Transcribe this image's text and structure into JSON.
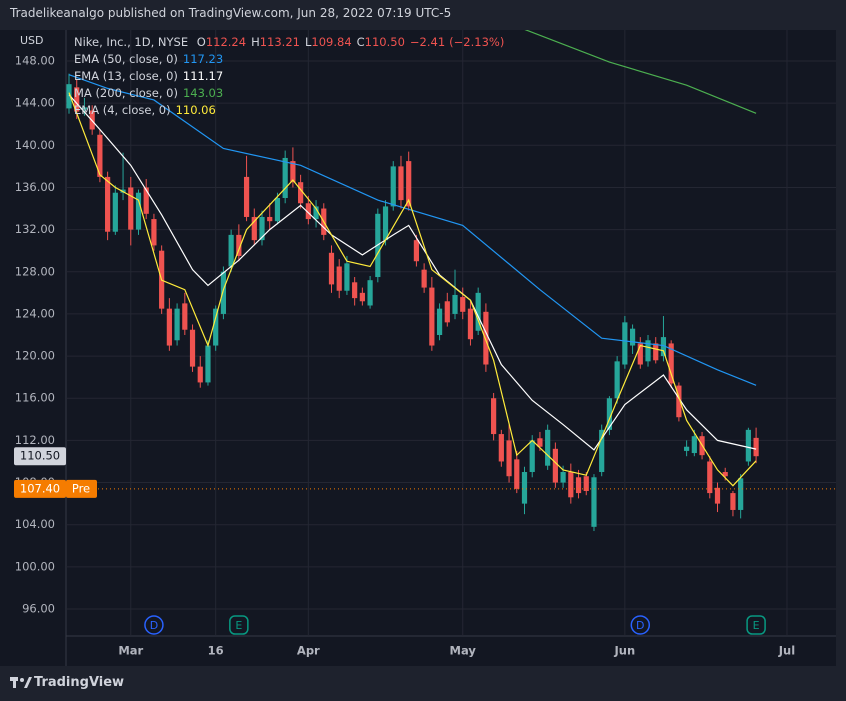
{
  "header": "Tradelikeanalgo published on TradingView.com, Jun 28, 2022 07:19 UTC-5",
  "footer": "TradingView",
  "chart_data": {
    "type": "candlestick",
    "currency": "USD",
    "symbol": "Nike, Inc., 1D, NYSE",
    "quote": [
      {
        "name": "O",
        "value": 112.24
      },
      {
        "name": "H",
        "value": 113.21
      },
      {
        "name": "L",
        "value": 109.84
      },
      {
        "name": "C",
        "value": 110.5,
        "text": "110.50"
      }
    ],
    "change": {
      "value": -2.41,
      "label": "−2.41"
    },
    "change_pct": {
      "value": -2.13,
      "label": "(−2.13%)"
    },
    "up_color": "#26a69a",
    "down_color": "#ef5350",
    "grid": true,
    "xlim": [
      -0.39,
      99.35
    ],
    "xticks": [
      {
        "value": 8,
        "label": "Mar"
      },
      {
        "value": 19,
        "label": "16"
      },
      {
        "value": 31,
        "label": "Apr"
      },
      {
        "value": 51,
        "label": "May"
      },
      {
        "value": 72,
        "label": "Jun"
      },
      {
        "value": 93,
        "label": "Jul"
      }
    ],
    "ylim": [
      93.44,
      150.94
    ],
    "yticks": [
      {
        "value": 148,
        "label": "148.00"
      },
      {
        "value": 144,
        "label": "144.00"
      },
      {
        "value": 140,
        "label": "140.00"
      },
      {
        "value": 136,
        "label": "136.00"
      },
      {
        "value": 132,
        "label": "132.00"
      },
      {
        "value": 128,
        "label": "128.00"
      },
      {
        "value": 124,
        "label": "124.00"
      },
      {
        "value": 120,
        "label": "120.00"
      },
      {
        "value": 116,
        "label": "116.00"
      },
      {
        "value": 112,
        "label": "112.00"
      },
      {
        "value": 108,
        "label": "108.00"
      },
      {
        "value": 104,
        "label": "104.00"
      },
      {
        "value": 100,
        "label": "100.00"
      },
      {
        "value": 96,
        "label": "96.00"
      }
    ],
    "open": [
      143.5,
      145.5,
      143.4,
      143.3,
      141.0,
      137.0,
      131.8,
      135.5,
      136.0,
      132.0,
      136.0,
      133.0,
      130.0,
      124.5,
      121.5,
      125.0,
      122.5,
      119.0,
      117.5,
      121.0,
      124.0,
      128.5,
      131.5,
      137.0,
      133.2,
      131.0,
      133.2,
      132.8,
      135.0,
      138.5,
      136.5,
      134.5,
      133.0,
      134.0,
      129.8,
      128.5,
      126.2,
      127.0,
      126.0,
      124.8,
      127.5,
      131.0,
      134.2,
      138.0,
      138.5,
      131.0,
      128.2,
      126.5,
      122.0,
      125.2,
      124.0,
      125.6,
      124.5,
      122.4,
      124.2,
      116.0,
      112.6,
      112.0,
      110.2,
      106.0,
      109.0,
      112.2,
      109.6,
      111.2,
      108.0,
      109.0,
      108.5,
      108.6,
      103.8,
      109.0,
      113.0,
      116.0,
      119.2,
      121.0,
      121.2,
      119.5,
      121.2,
      120.0,
      121.2,
      117.2,
      111.0,
      110.8,
      112.4,
      110.0,
      107.5,
      109.0,
      107.0,
      105.4,
      110.0,
      112.24
    ],
    "high": [
      146.8,
      146.2,
      144.5,
      143.8,
      141.5,
      137.5,
      136.2,
      139.3,
      137.0,
      135.8,
      136.8,
      133.5,
      130.5,
      125.5,
      125.0,
      126.0,
      123.0,
      120.0,
      121.5,
      124.8,
      128.5,
      132.0,
      132.5,
      139.0,
      134.0,
      133.8,
      134.5,
      135.5,
      139.5,
      139.8,
      137.2,
      135.2,
      134.8,
      134.5,
      130.5,
      129.2,
      129.5,
      127.5,
      126.5,
      127.6,
      134.0,
      134.8,
      138.5,
      139.0,
      139.4,
      131.5,
      128.8,
      127.5,
      125.0,
      126.0,
      128.2,
      126.5,
      125.2,
      126.5,
      125.0,
      116.5,
      113.0,
      113.5,
      111.0,
      109.5,
      112.5,
      112.8,
      113.5,
      111.8,
      109.6,
      109.8,
      109.2,
      109.0,
      108.8,
      113.5,
      116.2,
      120.0,
      123.8,
      123.0,
      121.8,
      122.0,
      121.8,
      123.8,
      121.5,
      117.5,
      112.0,
      113.0,
      112.8,
      110.5,
      108.0,
      109.4,
      107.2,
      108.8,
      113.2,
      113.21
    ],
    "low": [
      143.0,
      142.5,
      142.8,
      141.0,
      136.5,
      131.0,
      131.5,
      134.8,
      130.5,
      131.5,
      133.0,
      130.0,
      124.0,
      120.5,
      121.0,
      122.0,
      118.5,
      117.0,
      117.2,
      120.5,
      123.5,
      128.0,
      129.0,
      132.8,
      130.5,
      130.5,
      132.0,
      132.5,
      134.5,
      136.0,
      134.0,
      132.5,
      132.2,
      131.0,
      126.0,
      125.5,
      125.8,
      124.8,
      124.8,
      124.5,
      127.0,
      130.5,
      133.8,
      134.0,
      133.8,
      128.5,
      126.0,
      120.5,
      121.5,
      122.8,
      123.5,
      123.5,
      121.0,
      122.0,
      118.5,
      112.0,
      109.5,
      108.0,
      107.0,
      105.0,
      108.5,
      111.0,
      109.2,
      107.5,
      107.5,
      106.0,
      106.5,
      106.8,
      103.4,
      108.6,
      112.5,
      115.5,
      118.8,
      120.2,
      118.8,
      119.0,
      119.3,
      119.5,
      117.0,
      113.8,
      110.5,
      110.5,
      110.2,
      106.5,
      105.2,
      108.2,
      104.8,
      104.6,
      109.6,
      109.84
    ],
    "close": [
      145.8,
      143.2,
      143.6,
      141.5,
      137.0,
      131.8,
      135.5,
      135.8,
      132.0,
      135.5,
      133.5,
      130.5,
      124.5,
      121.0,
      124.5,
      122.5,
      119.0,
      117.5,
      121.0,
      124.5,
      128.0,
      131.5,
      129.5,
      133.2,
      131.0,
      133.2,
      132.8,
      135.0,
      138.8,
      136.5,
      134.5,
      133.0,
      134.2,
      131.5,
      126.8,
      126.2,
      128.8,
      125.5,
      125.2,
      127.2,
      133.5,
      134.2,
      138.0,
      134.8,
      134.2,
      129.0,
      126.5,
      121.0,
      124.5,
      123.2,
      125.8,
      124.2,
      121.6,
      126.0,
      119.2,
      112.6,
      110.0,
      108.6,
      107.4,
      109.0,
      112.0,
      111.4,
      113.0,
      108.0,
      109.0,
      106.6,
      107.0,
      107.2,
      108.5,
      113.0,
      116.0,
      119.5,
      123.2,
      122.6,
      119.2,
      121.5,
      119.6,
      121.8,
      117.4,
      114.2,
      111.4,
      112.4,
      110.6,
      107.0,
      106.0,
      108.6,
      105.4,
      108.4,
      113.0,
      110.5
    ],
    "indicators": [
      {
        "name": "EMA (50, close, 0)",
        "color": "#2196f3",
        "last": 117.23,
        "x": [
          0,
          5,
          11,
          20,
          30,
          40,
          51,
          61,
          69,
          77,
          84,
          89
        ],
        "values": [
          146.7,
          145.4,
          144.3,
          139.7,
          138.1,
          134.8,
          132.4,
          126.3,
          121.7,
          121.0,
          118.7,
          117.23
        ]
      },
      {
        "name": "EMA (13, close, 0)",
        "color": "#ffffff",
        "last": 111.17,
        "x": [
          0,
          4,
          8,
          12,
          16,
          18,
          22,
          26,
          30,
          34,
          38,
          42,
          44,
          48,
          52,
          56,
          60,
          64,
          68,
          72,
          77,
          80,
          84,
          89
        ],
        "values": [
          144.8,
          141.5,
          138.1,
          133.4,
          128.2,
          126.7,
          129.1,
          132.0,
          134.3,
          131.5,
          129.6,
          131.5,
          132.4,
          127.7,
          125.3,
          119.2,
          115.8,
          113.5,
          111.1,
          115.4,
          118.2,
          114.9,
          112.0,
          111.17
        ]
      },
      {
        "name": "MA (200, close, 0)",
        "color": "#4caf50",
        "last": 143.03,
        "x": [
          59,
          70,
          80,
          89
        ],
        "values": [
          151.0,
          147.9,
          145.7,
          143.03
        ]
      },
      {
        "name": "EMA (4, close, 0)",
        "color": "#ffeb3b",
        "last": 110.06,
        "x": [
          0,
          4,
          6,
          9,
          12,
          15,
          18,
          20,
          23,
          29,
          32,
          36,
          39,
          44,
          47,
          52,
          55,
          58,
          60,
          64,
          67,
          71,
          74,
          77,
          80,
          84,
          86,
          89
        ],
        "values": [
          145.0,
          137.2,
          136.0,
          134.8,
          127.2,
          126.3,
          121.0,
          126.3,
          132.0,
          136.7,
          134.0,
          129.0,
          128.5,
          134.8,
          128.2,
          125.3,
          119.6,
          110.6,
          112.0,
          109.2,
          108.7,
          115.8,
          121.0,
          120.5,
          113.9,
          109.2,
          107.7,
          110.06
        ]
      }
    ],
    "last_price": {
      "value": 110.5,
      "label": "110.50"
    },
    "premarket": {
      "value": 107.4,
      "label": "107.40",
      "tag": "Pre"
    },
    "events": [
      {
        "label": "D",
        "x": 11,
        "color": "#2962ff"
      },
      {
        "label": "E",
        "x": 22,
        "color": "#089981"
      },
      {
        "label": "D",
        "x": 74,
        "color": "#2962ff"
      },
      {
        "label": "E",
        "x": 89,
        "color": "#089981"
      }
    ]
  }
}
